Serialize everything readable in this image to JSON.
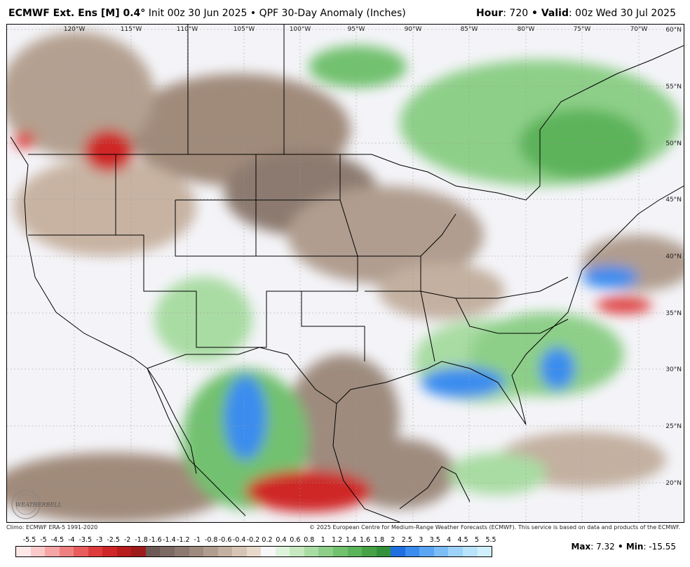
{
  "header": {
    "model": "ECMWF Ext. Ens [M] 0.4",
    "degree": "°",
    "init": " Init 00z 30 Jun 2025",
    "bullet": " • ",
    "product": "QPF 30-Day Anomaly (Inches)",
    "hour_label": "Hour",
    "hour_value": ": 720",
    "valid_label": "Valid",
    "valid_value": ": 00z Wed 30 Jul 2025"
  },
  "map": {
    "longitudes": [
      "120°W",
      "115°W",
      "110°W",
      "105°W",
      "100°W",
      "95°W",
      "90°W",
      "85°W",
      "80°W",
      "75°W",
      "70°W"
    ],
    "latitudes": [
      "60°N",
      "55°N",
      "50°N",
      "45°N",
      "40°N",
      "35°N",
      "30°N",
      "25°N",
      "20°N"
    ]
  },
  "footer": {
    "climo": "Climo: ECMWF ERA-5 1991-2020",
    "copyright": "© 2025 European Centre for Medium-Range Weather Forecasts (ECMWF). This service is based on data and products of the ECMWF.",
    "logo_text": "WEATHERBELL"
  },
  "legend": {
    "labels": [
      "-5.5",
      "-5",
      "-4.5",
      "-4",
      "-3.5",
      "-3",
      "-2.5",
      "-2",
      "-1.8",
      "-1.6",
      "-1.4",
      "-1.2",
      "-1",
      "-0.8",
      "-0.6",
      "-0.4",
      "-0.2",
      "0.2",
      "0.4",
      "0.6",
      "0.8",
      "1",
      "1.2",
      "1.4",
      "1.6",
      "1.8",
      "2",
      "2.5",
      "3",
      "3.5",
      "4",
      "4.5",
      "5",
      "5.5"
    ],
    "colors": [
      "#ffe8e8",
      "#fbc9c9",
      "#f5a5a5",
      "#ef8080",
      "#e85c5c",
      "#de3c3c",
      "#cf2727",
      "#b81c1c",
      "#9e1b1b",
      "#6e5a55",
      "#7d6a62",
      "#8c7a70",
      "#9e8b7e",
      "#b09d8f",
      "#c3b0a0",
      "#d6c4b4",
      "#e8dacb",
      "#f8f8f8",
      "#dff3dc",
      "#c6e9c0",
      "#a9dca3",
      "#8dcf88",
      "#72c16f",
      "#5bb35a",
      "#47a247",
      "#34913b",
      "#1f6fe0",
      "#3b8cef",
      "#5aa6f5",
      "#7cbdf8",
      "#9dd2fa",
      "#b8e3fb",
      "#d0f0fd"
    ]
  },
  "stats": {
    "max_label": "Max",
    "max_value": ": 7.32",
    "sep": " • ",
    "min_label": "Min",
    "min_value": ": -15.55"
  }
}
